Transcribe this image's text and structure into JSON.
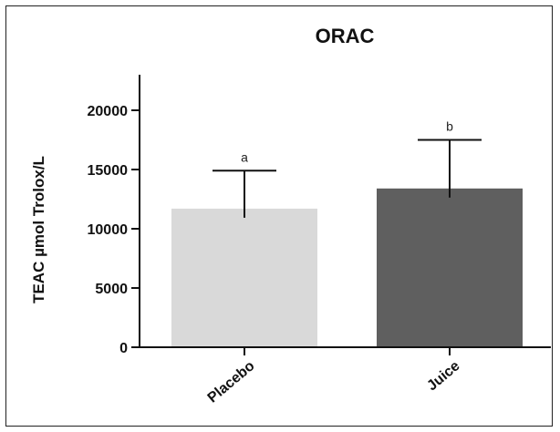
{
  "chart_data": {
    "type": "bar",
    "title": "ORAC",
    "ylabel": "TEAC µmol Trolox/L",
    "xlabel": "",
    "categories": [
      "Placebo",
      "Juice"
    ],
    "values": [
      11700,
      13400
    ],
    "error_bars": [
      3200,
      4100
    ],
    "significance_labels": [
      "a",
      "b"
    ],
    "bar_colors": [
      "#d9d9d9",
      "#5f5f5f"
    ],
    "ylim": [
      0,
      23000
    ],
    "yticks": [
      0,
      5000,
      10000,
      15000,
      20000
    ],
    "ytick_labels": [
      "0",
      "5000",
      "10000",
      "15000",
      "20000"
    ],
    "grid": false
  }
}
